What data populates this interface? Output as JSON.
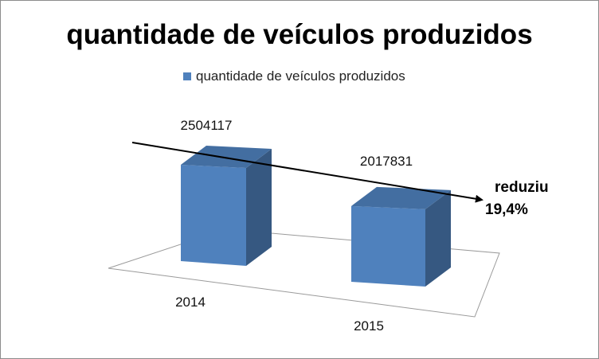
{
  "chart_data": {
    "type": "bar",
    "title": "quantidade de veículos produzidos",
    "categories": [
      "2014",
      "2015"
    ],
    "series": [
      {
        "name": "quantidade de veículos produzidos",
        "values": [
          2504117,
          2017831
        ],
        "color": "#4f81bd"
      }
    ],
    "data_labels": [
      "2504117",
      "2017831"
    ],
    "legend_position": "top",
    "grid": false,
    "style": "3d-column",
    "annotation": {
      "line1": "reduziu",
      "line2": "19,4%"
    }
  }
}
